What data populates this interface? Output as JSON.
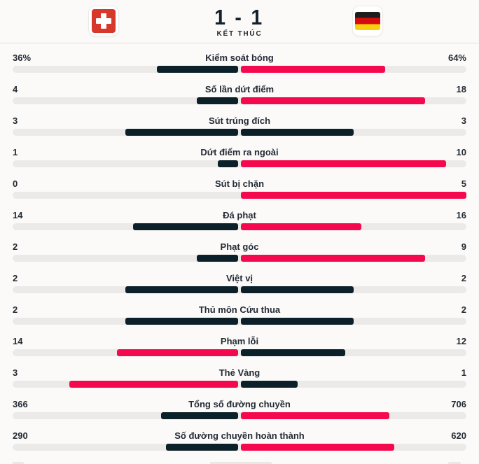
{
  "header": {
    "score": "1 - 1",
    "status": "KẾT THÚC",
    "home_flag": "switzerland",
    "away_flag": "germany"
  },
  "colors": {
    "background": "#fbfaf8",
    "bar_track": "#eceae8",
    "bar_normal": "#0c2029",
    "bar_highlight": "#f5094e",
    "swiss_red": "#d8372b",
    "german_black": "#1d1d1b",
    "german_red": "#d60b10",
    "german_gold": "#f6cf0e",
    "text_dark": "#232b35"
  },
  "stats": [
    {
      "label": "Kiểm soát bóng",
      "home": "36%",
      "away": "64%"
    },
    {
      "label": "Số lần dứt điểm",
      "home": "4",
      "away": "18"
    },
    {
      "label": "Sút trúng đích",
      "home": "3",
      "away": "3"
    },
    {
      "label": "Dứt điểm ra ngoài",
      "home": "1",
      "away": "10"
    },
    {
      "label": "Sút bị chặn",
      "home": "0",
      "away": "5"
    },
    {
      "label": "Đá phạt",
      "home": "14",
      "away": "16"
    },
    {
      "label": "Phạt góc",
      "home": "2",
      "away": "9"
    },
    {
      "label": "Việt vị",
      "home": "2",
      "away": "2"
    },
    {
      "label": "Thủ môn Cứu thua",
      "home": "2",
      "away": "2"
    },
    {
      "label": "Phạm lỗi",
      "home": "14",
      "away": "12"
    },
    {
      "label": "Thẻ Vàng",
      "home": "3",
      "away": "1"
    },
    {
      "label": "Tổng số đường chuyền",
      "home": "366",
      "away": "706"
    },
    {
      "label": "Số đường chuyền hoàn thành",
      "home": "290",
      "away": "620"
    }
  ]
}
